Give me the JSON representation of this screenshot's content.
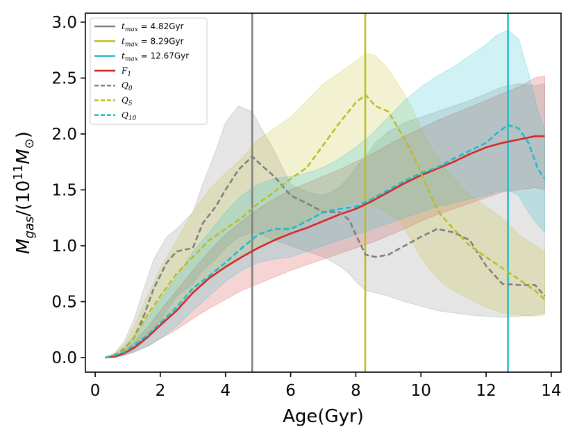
{
  "chart_data": {
    "type": "line",
    "xlabel": "Age(Gyr)",
    "ylabel": "M_gas/(10^11 M_⊙)",
    "ylabel_parts": {
      "sym": "M",
      "sub": "gas",
      "mid": "/(10",
      "sup": "11",
      "sym2": "M",
      "sub2": "⊙",
      "close": ")"
    },
    "xlim": [
      -0.3,
      14.3
    ],
    "ylim": [
      -0.13,
      3.08
    ],
    "xticks": [
      0,
      2,
      4,
      6,
      8,
      10,
      12,
      14
    ],
    "yticks": [
      0.0,
      0.5,
      1.0,
      1.5,
      2.0,
      2.5,
      3.0
    ],
    "xtick_labels": [
      "0",
      "2",
      "4",
      "6",
      "8",
      "10",
      "12",
      "14"
    ],
    "ytick_labels": [
      "0.0",
      "0.5",
      "1.0",
      "1.5",
      "2.0",
      "2.5",
      "3.0"
    ],
    "legend_position": "top-left",
    "vlines": [
      {
        "name": "t_max = 4.82Gyr",
        "x": 4.82,
        "color": "#7f7f7f",
        "sym": "t",
        "sub": "max",
        "text": " = 4.82Gyr"
      },
      {
        "name": "t_max = 8.29Gyr",
        "x": 8.29,
        "color": "#bcbd22",
        "sym": "t",
        "sub": "max",
        "text": " = 8.29Gyr"
      },
      {
        "name": "t_max = 12.67Gyr",
        "x": 12.67,
        "color": "#17becf",
        "sym": "t",
        "sub": "max",
        "text": " = 12.67Gyr"
      }
    ],
    "series": [
      {
        "name": "F_1",
        "sym": "F",
        "sub": "1",
        "color": "#d62728",
        "dashed": false,
        "x": [
          0.3,
          0.6,
          0.9,
          1.2,
          1.6,
          2.0,
          2.5,
          3.0,
          3.5,
          4.0,
          4.5,
          5.0,
          5.5,
          6.0,
          6.5,
          7.0,
          7.5,
          8.0,
          8.5,
          9.0,
          9.5,
          10.0,
          10.5,
          11.0,
          11.5,
          12.0,
          12.5,
          13.0,
          13.5,
          13.8
        ],
        "y": [
          0.0,
          0.01,
          0.04,
          0.09,
          0.18,
          0.29,
          0.42,
          0.58,
          0.71,
          0.81,
          0.9,
          0.98,
          1.05,
          1.11,
          1.16,
          1.22,
          1.28,
          1.33,
          1.4,
          1.48,
          1.56,
          1.63,
          1.69,
          1.75,
          1.82,
          1.88,
          1.92,
          1.95,
          1.98,
          1.98
        ],
        "band_upper": [
          0.0,
          0.02,
          0.06,
          0.14,
          0.27,
          0.42,
          0.6,
          0.78,
          0.95,
          1.1,
          1.22,
          1.33,
          1.42,
          1.5,
          1.56,
          1.62,
          1.68,
          1.75,
          1.82,
          1.9,
          1.98,
          2.05,
          2.12,
          2.18,
          2.24,
          2.3,
          2.36,
          2.42,
          2.5,
          2.52
        ],
        "band_lower": [
          0.0,
          0.0,
          0.02,
          0.05,
          0.1,
          0.17,
          0.25,
          0.35,
          0.44,
          0.52,
          0.6,
          0.66,
          0.72,
          0.78,
          0.83,
          0.88,
          0.93,
          0.98,
          1.03,
          1.09,
          1.15,
          1.22,
          1.28,
          1.33,
          1.38,
          1.43,
          1.48,
          1.5,
          1.52,
          1.5
        ]
      },
      {
        "name": "Q_0",
        "sym": "Q",
        "sub": "0",
        "color": "#7f7f7f",
        "dashed": true,
        "x": [
          0.3,
          0.6,
          0.9,
          1.2,
          1.5,
          1.8,
          2.2,
          2.5,
          3.0,
          3.3,
          3.7,
          4.0,
          4.4,
          4.82,
          5.1,
          5.5,
          6.0,
          6.5,
          7.0,
          7.5,
          7.8,
          8.0,
          8.3,
          8.6,
          9.0,
          9.5,
          10.0,
          10.5,
          11.0,
          11.5,
          12.0,
          12.5,
          13.0,
          13.5,
          13.8
        ],
        "y": [
          0.0,
          0.02,
          0.08,
          0.18,
          0.38,
          0.62,
          0.85,
          0.95,
          0.98,
          1.2,
          1.35,
          1.5,
          1.68,
          1.8,
          1.72,
          1.62,
          1.45,
          1.38,
          1.3,
          1.3,
          1.23,
          1.1,
          0.92,
          0.9,
          0.92,
          1.0,
          1.08,
          1.15,
          1.12,
          1.05,
          0.82,
          0.66,
          0.65,
          0.65,
          0.55
        ],
        "band_upper": [
          0.0,
          0.04,
          0.15,
          0.35,
          0.62,
          0.88,
          1.08,
          1.15,
          1.3,
          1.55,
          1.85,
          2.1,
          2.25,
          2.2,
          2.05,
          1.85,
          1.55,
          1.48,
          1.45,
          1.52,
          1.62,
          1.7,
          1.8,
          1.92,
          2.02,
          2.1,
          2.15,
          2.2,
          2.25,
          2.3,
          2.36,
          2.42,
          2.45,
          2.43,
          2.45
        ],
        "band_lower": [
          0.0,
          0.0,
          0.03,
          0.07,
          0.14,
          0.25,
          0.42,
          0.55,
          0.66,
          0.78,
          0.88,
          0.98,
          1.08,
          1.12,
          1.1,
          1.05,
          1.0,
          0.95,
          0.9,
          0.82,
          0.75,
          0.68,
          0.6,
          0.58,
          0.55,
          0.5,
          0.46,
          0.42,
          0.4,
          0.38,
          0.37,
          0.36,
          0.37,
          0.38,
          0.4
        ]
      },
      {
        "name": "Q_5",
        "sym": "Q",
        "sub": "5",
        "color": "#bcbd22",
        "dashed": true,
        "x": [
          0.3,
          0.6,
          0.9,
          1.2,
          1.6,
          2.0,
          2.5,
          3.0,
          3.5,
          4.0,
          4.5,
          5.0,
          5.5,
          6.0,
          6.5,
          7.0,
          7.5,
          8.0,
          8.3,
          8.6,
          9.0,
          9.4,
          9.7,
          10.0,
          10.3,
          10.6,
          11.0,
          11.5,
          12.0,
          12.5,
          13.0,
          13.5,
          13.8
        ],
        "y": [
          0.0,
          0.02,
          0.07,
          0.18,
          0.38,
          0.55,
          0.75,
          0.9,
          1.05,
          1.15,
          1.25,
          1.38,
          1.48,
          1.6,
          1.7,
          1.9,
          2.1,
          2.28,
          2.35,
          2.25,
          2.2,
          2.0,
          1.85,
          1.65,
          1.45,
          1.28,
          1.15,
          1.0,
          0.9,
          0.8,
          0.7,
          0.6,
          0.52
        ],
        "band_upper": [
          0.0,
          0.04,
          0.12,
          0.28,
          0.55,
          0.8,
          1.05,
          1.3,
          1.5,
          1.65,
          1.78,
          1.95,
          2.05,
          2.15,
          2.3,
          2.45,
          2.55,
          2.65,
          2.72,
          2.7,
          2.58,
          2.4,
          2.25,
          2.05,
          1.88,
          1.75,
          1.6,
          1.45,
          1.35,
          1.25,
          1.1,
          1.0,
          0.95
        ],
        "band_lower": [
          0.0,
          0.0,
          0.03,
          0.08,
          0.18,
          0.3,
          0.45,
          0.6,
          0.72,
          0.82,
          0.9,
          0.98,
          1.05,
          1.15,
          1.22,
          1.3,
          1.35,
          1.4,
          1.38,
          1.35,
          1.3,
          1.2,
          1.05,
          0.9,
          0.78,
          0.68,
          0.6,
          0.52,
          0.45,
          0.4,
          0.38,
          0.37,
          0.38
        ]
      },
      {
        "name": "Q_10",
        "sym": "Q",
        "sub": "10",
        "color": "#17becf",
        "dashed": true,
        "x": [
          0.3,
          0.6,
          0.9,
          1.2,
          1.6,
          2.0,
          2.5,
          3.0,
          3.5,
          4.0,
          4.5,
          5.0,
          5.5,
          6.0,
          6.5,
          7.0,
          7.5,
          8.0,
          8.5,
          9.0,
          9.5,
          10.0,
          10.5,
          11.0,
          11.5,
          12.0,
          12.3,
          12.67,
          13.0,
          13.3,
          13.6,
          13.8
        ],
        "y": [
          0.0,
          0.02,
          0.05,
          0.11,
          0.2,
          0.31,
          0.45,
          0.62,
          0.73,
          0.85,
          0.98,
          1.1,
          1.15,
          1.15,
          1.22,
          1.3,
          1.33,
          1.35,
          1.42,
          1.5,
          1.58,
          1.65,
          1.7,
          1.78,
          1.85,
          1.92,
          2.0,
          2.08,
          2.05,
          1.92,
          1.68,
          1.6
        ],
        "band_upper": [
          0.0,
          0.03,
          0.09,
          0.2,
          0.35,
          0.52,
          0.72,
          0.95,
          1.12,
          1.3,
          1.45,
          1.55,
          1.6,
          1.62,
          1.65,
          1.7,
          1.78,
          1.88,
          2.0,
          2.15,
          2.3,
          2.42,
          2.52,
          2.6,
          2.7,
          2.8,
          2.88,
          2.93,
          2.85,
          2.55,
          2.2,
          2.05
        ],
        "band_lower": [
          0.0,
          0.0,
          0.02,
          0.05,
          0.1,
          0.17,
          0.28,
          0.42,
          0.55,
          0.68,
          0.78,
          0.85,
          0.88,
          0.9,
          0.95,
          1.0,
          1.05,
          1.1,
          1.15,
          1.2,
          1.25,
          1.3,
          1.35,
          1.38,
          1.42,
          1.45,
          1.48,
          1.5,
          1.45,
          1.3,
          1.18,
          1.12
        ]
      }
    ]
  }
}
